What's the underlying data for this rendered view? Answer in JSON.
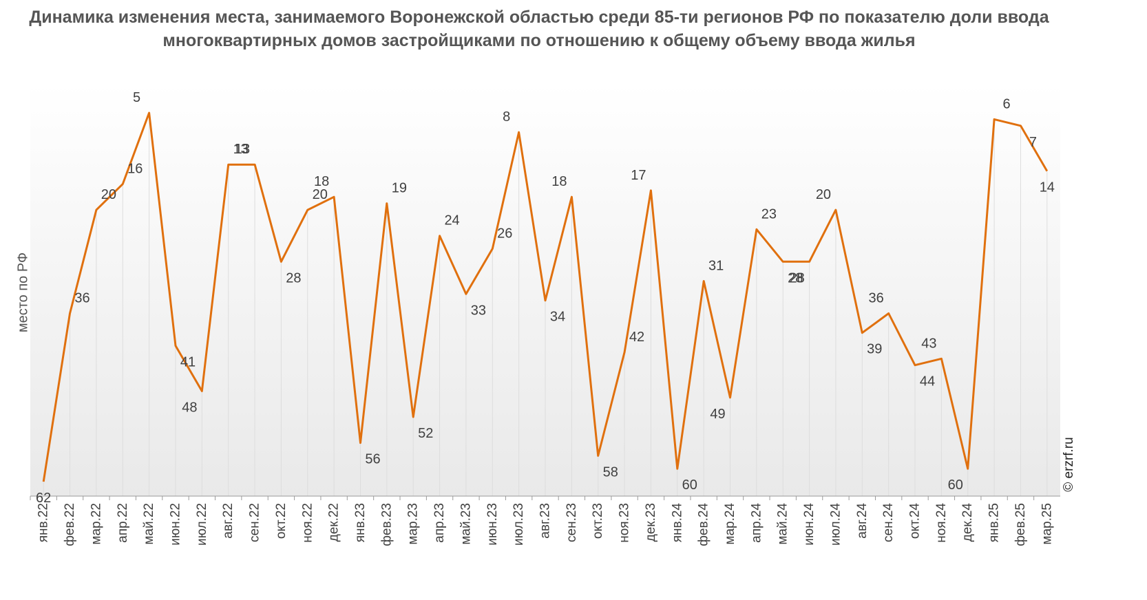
{
  "title": "Динамика изменения места, занимаемого Воронежской областью среди 85-ти регионов РФ по показателю доли ввода многоквартирных домов застройщиками по отношению к общему объему ввода жилья",
  "credit": "© erzrf.ru",
  "colors": {
    "line": "#E0700E",
    "grid": "#DDDDDD",
    "text": "#404040",
    "title": "#555555"
  },
  "chart_data": {
    "type": "line",
    "title": "Динамика изменения места, занимаемого Воронежской областью среди 85-ти регионов РФ по показателю доли ввода многоквартирных домов застройщиками по отношению к общему объему ввода жилья",
    "xlabel": "",
    "ylabel": "место по РФ",
    "y_reversed": true,
    "ylim": [
      64,
      1
    ],
    "grid": "vertical",
    "categories": [
      "янв.22",
      "фев.22",
      "мар.22",
      "апр.22",
      "май.22",
      "июн.22",
      "июл.22",
      "авг.22",
      "сен.22",
      "окт.22",
      "ноя.22",
      "дек.22",
      "янв.23",
      "фев.23",
      "мар.23",
      "апр.23",
      "май.23",
      "июн.23",
      "июл.23",
      "авг.23",
      "сен.23",
      "окт.23",
      "ноя.23",
      "дек.23",
      "янв.24",
      "фев.24",
      "мар.24",
      "апр.24",
      "май.24",
      "июн.24",
      "июл.24",
      "авг.24",
      "сен.24",
      "окт.24",
      "ноя.24",
      "дек.24",
      "янв.25",
      "фев.25",
      "мар.25"
    ],
    "series": [
      {
        "values": [
          62,
          36,
          20,
          16,
          5,
          41,
          48,
          13,
          13,
          28,
          20,
          18,
          56,
          19,
          52,
          24,
          33,
          26,
          8,
          34,
          18,
          58,
          42,
          17,
          60,
          31,
          49,
          23,
          28,
          28,
          20,
          39,
          36,
          44,
          43,
          60,
          6,
          7,
          14
        ]
      }
    ]
  }
}
